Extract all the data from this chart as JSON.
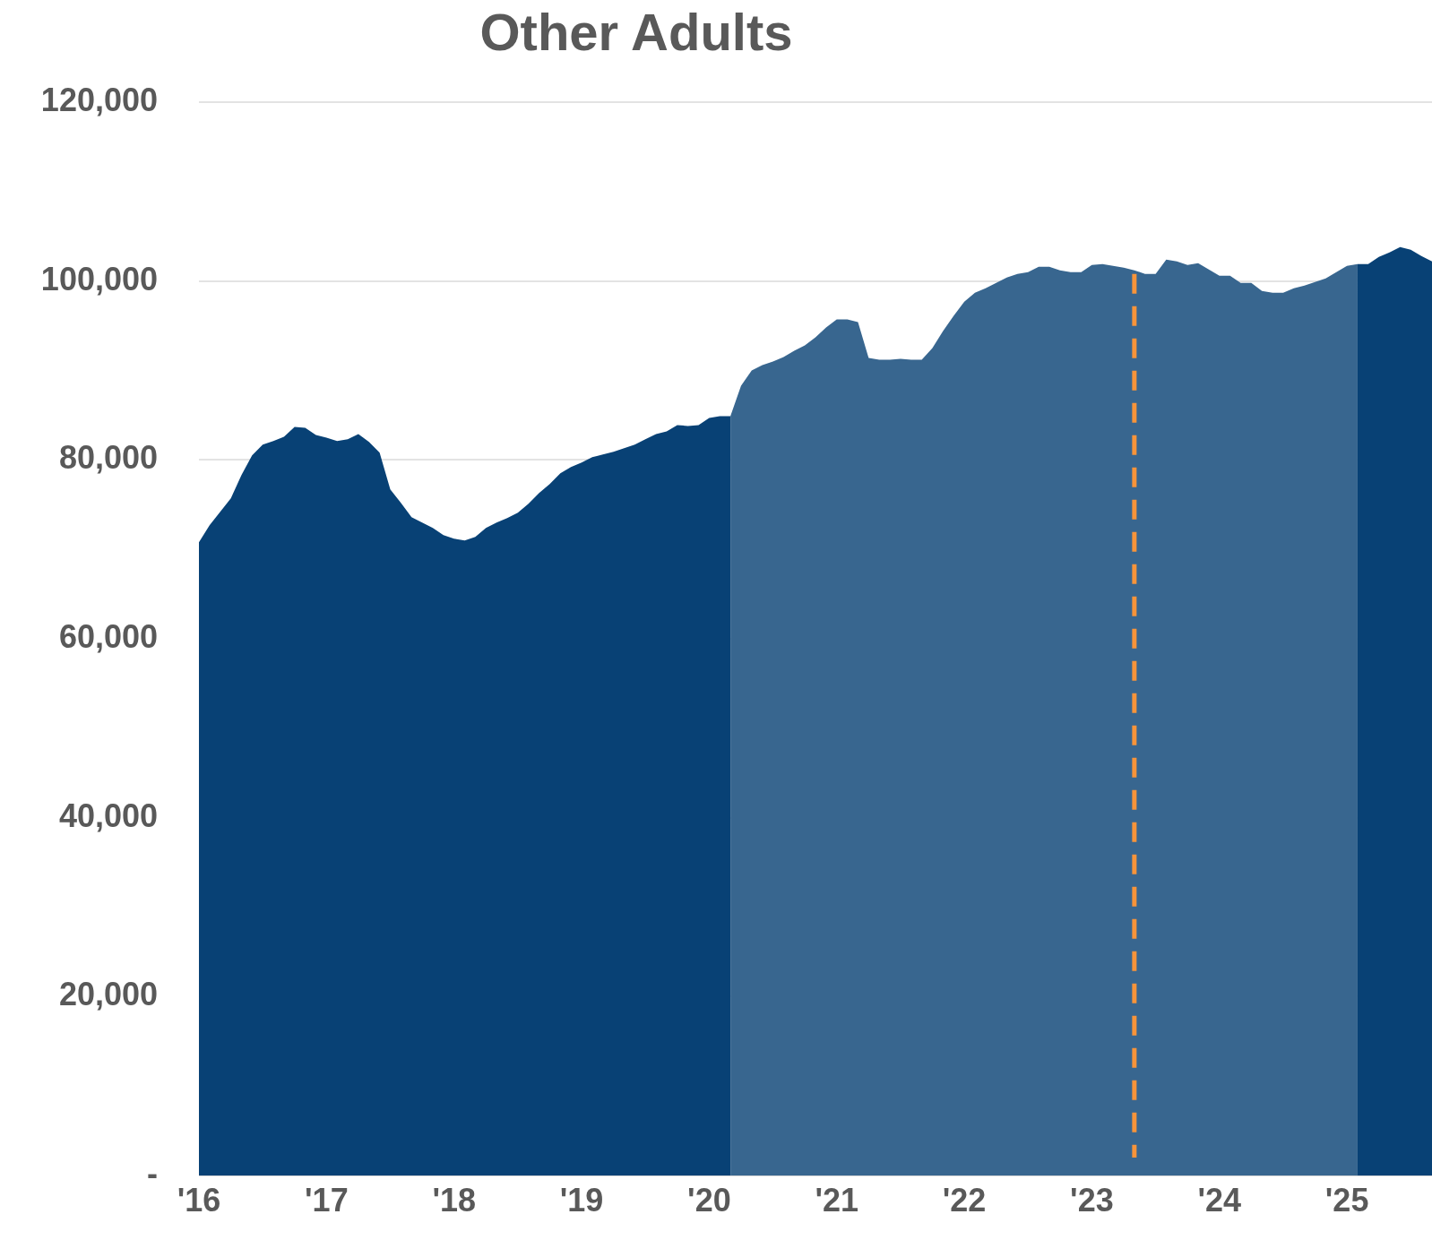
{
  "chart_data": {
    "type": "area",
    "title": "Other Adults",
    "x": [
      "2016-01",
      "2016-02",
      "2016-03",
      "2016-04",
      "2016-05",
      "2016-06",
      "2016-07",
      "2016-08",
      "2016-09",
      "2016-10",
      "2016-11",
      "2016-12",
      "2017-01",
      "2017-02",
      "2017-03",
      "2017-04",
      "2017-05",
      "2017-06",
      "2017-07",
      "2017-08",
      "2017-09",
      "2017-10",
      "2017-11",
      "2017-12",
      "2018-01",
      "2018-02",
      "2018-03",
      "2018-04",
      "2018-05",
      "2018-06",
      "2018-07",
      "2018-08",
      "2018-09",
      "2018-10",
      "2018-11",
      "2018-12",
      "2019-01",
      "2019-02",
      "2019-03",
      "2019-04",
      "2019-05",
      "2019-06",
      "2019-07",
      "2019-08",
      "2019-09",
      "2019-10",
      "2019-11",
      "2019-12",
      "2020-01",
      "2020-02",
      "2020-03",
      "2020-04",
      "2020-05",
      "2020-06",
      "2020-07",
      "2020-08",
      "2020-09",
      "2020-10",
      "2020-11",
      "2020-12",
      "2021-01",
      "2021-02",
      "2021-03",
      "2021-04",
      "2021-05",
      "2021-06",
      "2021-07",
      "2021-08",
      "2021-09",
      "2021-10",
      "2021-11",
      "2021-12",
      "2022-01",
      "2022-02",
      "2022-03",
      "2022-04",
      "2022-05",
      "2022-06",
      "2022-07",
      "2022-08",
      "2022-09",
      "2022-10",
      "2022-11",
      "2022-12",
      "2023-01",
      "2023-02",
      "2023-03",
      "2023-04",
      "2023-05",
      "2023-06",
      "2023-07",
      "2023-08",
      "2023-09",
      "2023-10",
      "2023-11",
      "2023-12",
      "2024-01",
      "2024-02",
      "2024-03",
      "2024-04",
      "2024-05",
      "2024-06",
      "2024-07",
      "2024-08",
      "2024-09",
      "2024-10",
      "2024-11",
      "2024-12",
      "2025-01",
      "2025-02",
      "2025-03",
      "2025-04",
      "2025-05",
      "2025-06",
      "2025-07",
      "2025-08",
      "2025-09"
    ],
    "series": [
      {
        "color": "#084175",
        "values": [
          70800,
          72700,
          74200,
          75700,
          78300,
          80500,
          81700,
          82100,
          82600,
          83700,
          83600,
          82800,
          82500,
          82100,
          82300,
          82900,
          82000,
          80800,
          76700,
          75200,
          73600,
          73000,
          72400,
          71600,
          71200,
          71000,
          71400,
          72400,
          73000,
          73500,
          74100,
          75100,
          76300,
          77300,
          78500,
          79200,
          79700,
          80300,
          80600,
          80900,
          81300,
          81700,
          82300,
          82900,
          83200,
          83900,
          83800,
          83900,
          84700,
          84900,
          84900,
          null,
          null,
          null,
          null,
          null,
          null,
          null,
          null,
          null,
          null,
          null,
          null,
          null,
          null,
          null,
          null,
          null,
          null,
          null,
          null,
          null,
          null,
          null,
          null,
          null,
          null,
          null,
          null,
          null,
          null,
          null,
          null,
          null,
          null,
          null,
          null,
          null,
          null,
          null,
          null,
          null,
          null,
          null,
          null,
          null,
          null,
          null,
          null,
          null,
          null,
          null,
          null,
          null,
          null,
          null,
          null,
          null,
          null,
          101900,
          101900,
          102700,
          103200,
          103800,
          103500,
          102800,
          102200
        ]
      },
      {
        "color": "#38668f",
        "x": [
          "2020-03",
          "2020-04",
          "2020-05",
          "2020-06",
          "2020-07",
          "2020-08",
          "2020-09",
          "2020-10",
          "2020-11",
          "2020-12",
          "2021-01",
          "2021-02",
          "2021-03",
          "2021-04",
          "2021-05",
          "2021-06",
          "2021-07",
          "2021-08",
          "2021-09",
          "2021-10",
          "2021-11",
          "2021-12",
          "2022-01",
          "2022-02",
          "2022-03",
          "2022-04",
          "2022-05",
          "2022-06",
          "2022-07",
          "2022-08",
          "2022-09",
          "2022-10",
          "2022-11",
          "2022-12",
          "2023-01",
          "2023-02",
          "2023-03",
          "2023-04",
          "2023-05",
          "2023-06",
          "2023-07",
          "2023-08",
          "2023-09",
          "2023-10",
          "2023-11",
          "2023-12",
          "2024-01",
          "2024-02",
          "2024-03",
          "2024-04",
          "2024-05",
          "2024-06",
          "2024-07",
          "2024-08",
          "2024-09",
          "2024-10",
          "2024-11",
          "2024-12",
          "2025-01",
          "2025-02"
        ],
        "values": [
          84900,
          88300,
          90000,
          90600,
          91000,
          91500,
          92200,
          92800,
          93700,
          94800,
          95700,
          95700,
          95400,
          91400,
          91200,
          91200,
          91300,
          91200,
          91200,
          92500,
          94400,
          96100,
          97700,
          98700,
          99200,
          99800,
          100400,
          100800,
          101000,
          101600,
          101600,
          101200,
          101000,
          101000,
          101800,
          101900,
          101700,
          101500,
          101200,
          100800,
          100800,
          102400,
          102200,
          101800,
          102000,
          101300,
          100600,
          100600,
          99800,
          99800,
          98900,
          98700,
          98700,
          99200,
          99500,
          99900,
          100300,
          101000,
          101700,
          101900
        ]
      }
    ],
    "xlim": [
      "2016-01",
      "2025-09"
    ],
    "xticks": [
      {
        "value": "2016-01",
        "label": "'16"
      },
      {
        "value": "2017-01",
        "label": "'17"
      },
      {
        "value": "2018-01",
        "label": "'18"
      },
      {
        "value": "2019-01",
        "label": "'19"
      },
      {
        "value": "2020-01",
        "label": "'20"
      },
      {
        "value": "2021-01",
        "label": "'21"
      },
      {
        "value": "2022-01",
        "label": "'22"
      },
      {
        "value": "2023-01",
        "label": "'23"
      },
      {
        "value": "2024-01",
        "label": "'24"
      },
      {
        "value": "2025-01",
        "label": "'25"
      }
    ],
    "ylim": [
      0,
      120000
    ],
    "yticks": [
      {
        "value": 0,
        "label": "-"
      },
      {
        "value": 20000,
        "label": "20,000"
      },
      {
        "value": 40000,
        "label": "40,000"
      },
      {
        "value": 60000,
        "label": "60,000"
      },
      {
        "value": 80000,
        "label": "80,000"
      },
      {
        "value": 100000,
        "label": "100,000"
      },
      {
        "value": 120000,
        "label": "120,000"
      }
    ],
    "grid": "y",
    "ref_lines": [
      {
        "axis": "x",
        "value": "2023-05",
        "color": "#f7943a",
        "line_style": "dashed"
      }
    ],
    "legend": false
  }
}
